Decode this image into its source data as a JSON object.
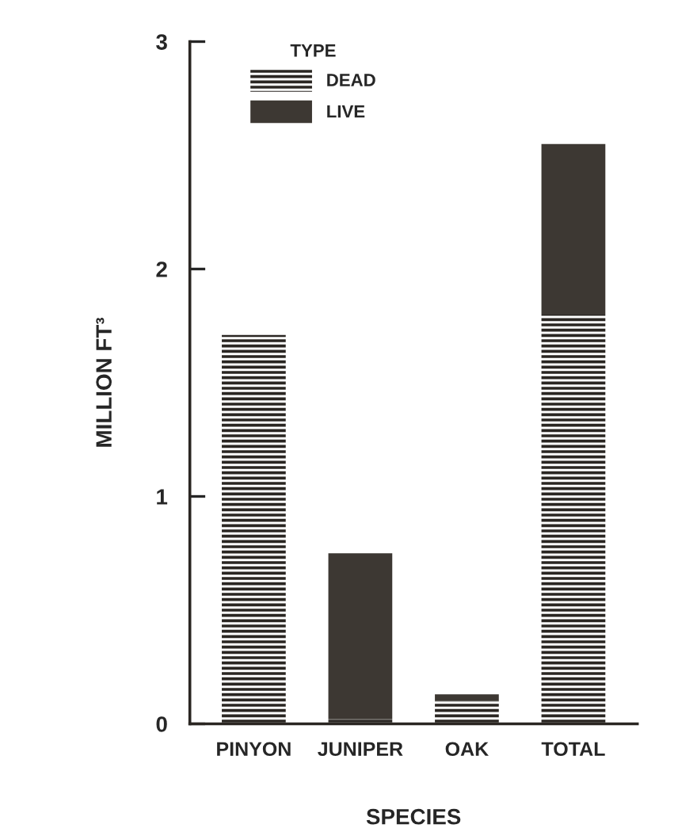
{
  "chart_data": {
    "type": "bar",
    "stacked": true,
    "xlabel": "SPECIES",
    "ylabel": "MILLION FT³",
    "legend_title": "TYPE",
    "legend": "top left",
    "grid": false,
    "categories": [
      "PINYON",
      "JUNIPER",
      "OAK",
      "TOTAL"
    ],
    "series": [
      {
        "name": "DEAD",
        "color": "#2a2622",
        "values": [
          1.71,
          0.02,
          0.1,
          1.8
        ]
      },
      {
        "name": "LIVE",
        "color": "#3d3833",
        "values": [
          0,
          0.73,
          0.03,
          0.75
        ]
      }
    ],
    "ylim": [
      0,
      3
    ],
    "yticks": [
      0,
      1,
      2,
      3
    ]
  }
}
